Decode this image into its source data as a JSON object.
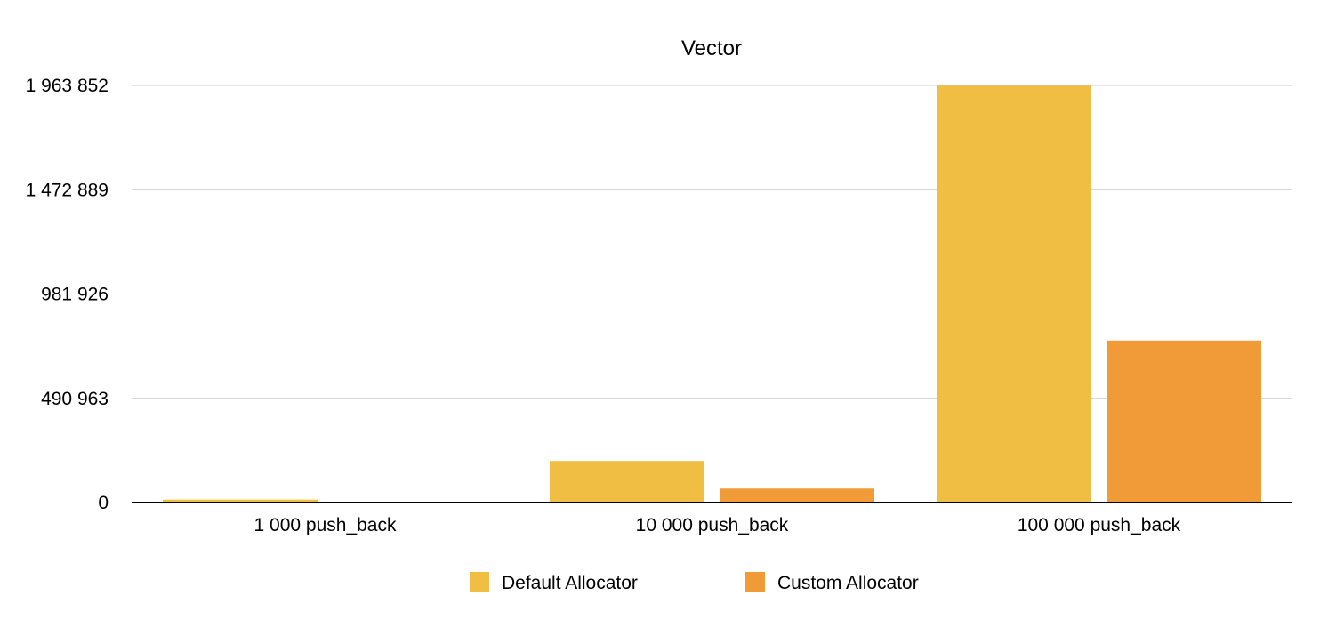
{
  "chart_data": {
    "type": "bar",
    "title": "Vector",
    "xlabel": "",
    "ylabel": "",
    "categories": [
      "1 000 push_back",
      "10 000 push_back",
      "100 000 push_back"
    ],
    "series": [
      {
        "name": "Default Allocator",
        "color": "#F0BE42",
        "values": [
          14000,
          196000,
          1962000
        ]
      },
      {
        "name": "Custom Allocator",
        "color": "#F09A38",
        "values": [
          2000,
          66000,
          763000
        ]
      }
    ],
    "yticks": [
      0,
      490963,
      981926,
      1472889,
      1963852
    ],
    "ytick_labels": [
      "0",
      "490 963",
      "981 926",
      "1 472 889",
      "1 963 852"
    ],
    "ylim": [
      0,
      1963852
    ],
    "grid": true,
    "legend_position": "bottom"
  }
}
